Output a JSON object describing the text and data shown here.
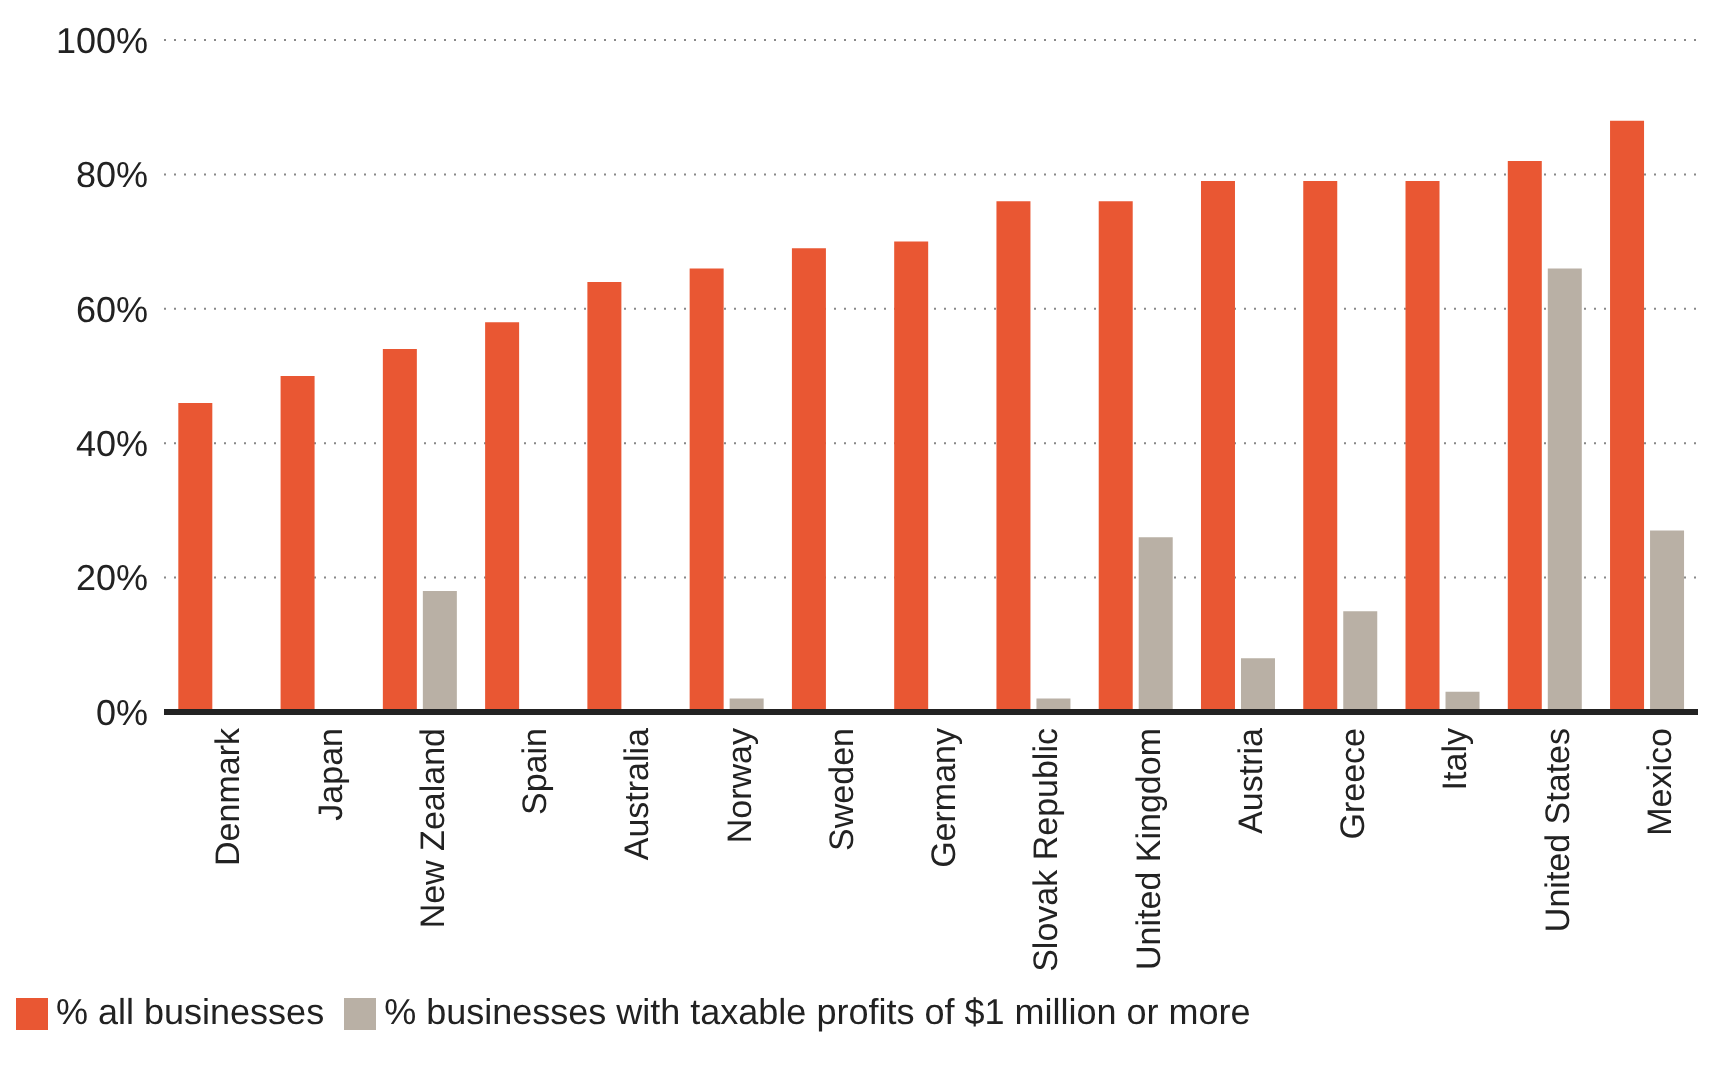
{
  "chart_data": {
    "type": "bar",
    "categories": [
      "Denmark",
      "Japan",
      "New Zealand",
      "Spain",
      "Australia",
      "Norway",
      "Sweden",
      "Germany",
      "Slovak Republic",
      "United Kingdom",
      "Austria",
      "Greece",
      "Italy",
      "United States",
      "Mexico"
    ],
    "series": [
      {
        "name": "% all businesses",
        "color": "#e95733",
        "values": [
          46,
          50,
          54,
          58,
          64,
          66,
          69,
          70,
          76,
          76,
          79,
          79,
          79,
          82,
          88
        ]
      },
      {
        "name": "% businesses with taxable profits of $1 million or more",
        "color": "#b9b0a5",
        "values": [
          0,
          0,
          18,
          0,
          0,
          2,
          0,
          0,
          2,
          26,
          8,
          15,
          3,
          66,
          27
        ]
      }
    ],
    "ylim": [
      0,
      100
    ],
    "yticks": [
      {
        "value": 0,
        "label": "0%"
      },
      {
        "value": 20,
        "label": "20%"
      },
      {
        "value": 40,
        "label": "40%"
      },
      {
        "value": 60,
        "label": "60%"
      },
      {
        "value": 80,
        "label": "80%"
      },
      {
        "value": 100,
        "label": "100%"
      }
    ],
    "grid": "y",
    "legend": "bottom left"
  }
}
